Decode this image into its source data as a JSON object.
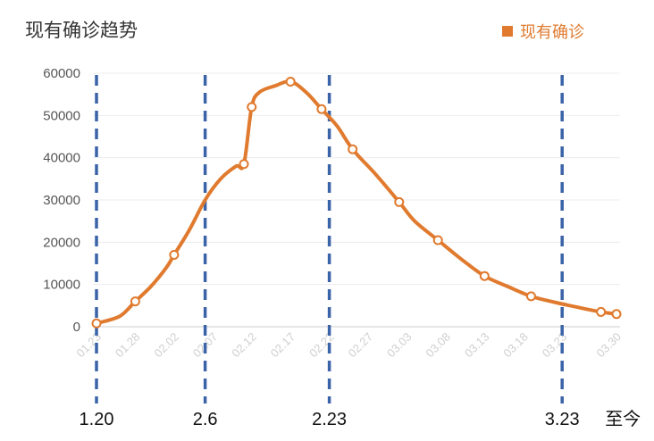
{
  "chart_data": {
    "type": "line",
    "title": "现有确诊趋势",
    "legend": {
      "label": "现有确诊",
      "placement": "top-right"
    },
    "xlabel": "",
    "ylabel": "",
    "ylim": [
      0,
      60000
    ],
    "yticks": [
      0,
      10000,
      20000,
      30000,
      40000,
      50000,
      60000
    ],
    "xticks": [
      "01.23",
      "01.28",
      "02.02",
      "02.07",
      "02.12",
      "02.17",
      "02.22",
      "02.27",
      "03.03",
      "03.08",
      "03.13",
      "03.18",
      "03.23",
      "03.30"
    ],
    "grid": true,
    "series": [
      {
        "name": "现有确诊",
        "color": "#e07a2e",
        "x": [
          "01.23",
          "01.26",
          "01.28",
          "01.30",
          "02.01",
          "02.02",
          "02.04",
          "02.06",
          "02.08",
          "02.10",
          "02.11",
          "02.12",
          "02.13",
          "02.15",
          "02.17",
          "02.19",
          "02.21",
          "02.23",
          "02.25",
          "02.28",
          "03.02",
          "03.04",
          "03.07",
          "03.10",
          "03.13",
          "03.16",
          "03.19",
          "03.22",
          "03.25",
          "03.28",
          "03.30"
        ],
        "values": [
          800,
          2500,
          6000,
          9500,
          14000,
          17000,
          23000,
          30000,
          35000,
          38000,
          38500,
          52000,
          55500,
          57000,
          58000,
          55500,
          51500,
          47500,
          42000,
          36000,
          29500,
          25000,
          20500,
          16000,
          12000,
          9500,
          7200,
          5800,
          4600,
          3500,
          3000
        ]
      }
    ],
    "markers_x": [
      0,
      3,
      25,
      6,
      11,
      17,
      24,
      30
    ],
    "annotations": {
      "vlines": [
        {
          "date": "01.23",
          "label": "1.20"
        },
        {
          "date": "02.06",
          "label": "2.6"
        },
        {
          "date": "02.22",
          "label": "2.23"
        },
        {
          "date": "03.23",
          "label": "3.23"
        }
      ],
      "tail_label": "至今",
      "line_color": "#3b63a8"
    }
  }
}
